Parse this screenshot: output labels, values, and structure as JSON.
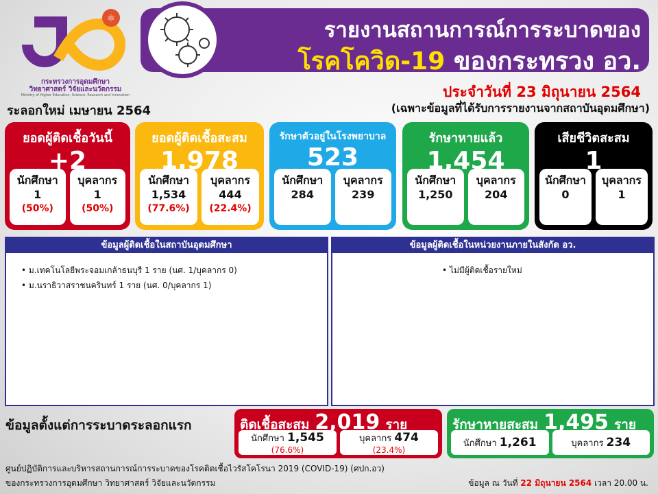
{
  "logo": {
    "org_th_1": "กระทรวงการอุดมศึกษา",
    "org_th_2": "วิทยาศาสตร์ วิจัยและนวัตกรรม",
    "org_en": "Ministry of Higher Education, Science, Research and Innovation",
    "colors": {
      "purple": "#6a2c91",
      "yellow": "#fbb41a",
      "orange": "#e0522a"
    }
  },
  "header": {
    "title_line1": "รายงานสถานการณ์การระบาดของ",
    "title_disease": "โรคโควิด-19",
    "title_rest": "ของกระทรวง อว.",
    "date": "ประจำวันที่ 23 มิถุนายน 2564",
    "note": "(เฉพาะข้อมูลที่ได้รับการรายงานจากสถาบันอุดมศึกษา)",
    "virus_icon": "virus-icon"
  },
  "wave_label": "ระลอกใหม่ เมษายน 2564",
  "cards": [
    {
      "title": "ยอดผู้ติดเชื้อวันนี้",
      "value": "+2",
      "color": "#c8001e",
      "sub": [
        {
          "label": "นักศึกษา",
          "value": "1",
          "pct": "(50%)"
        },
        {
          "label": "บุคลากร",
          "value": "1",
          "pct": "(50%)"
        }
      ]
    },
    {
      "title": "ยอดผู้ติดเชื้อสะสม",
      "value": "1,978",
      "color": "#fbb80f",
      "sub": [
        {
          "label": "นักศึกษา",
          "value": "1,534",
          "pct": "(77.6%)"
        },
        {
          "label": "บุคลากร",
          "value": "444",
          "pct": "(22.4%)"
        }
      ]
    },
    {
      "title": "รักษาตัวอยู่ในโรงพยาบาล",
      "value": "523",
      "color": "#1fa9e6",
      "sub": [
        {
          "label": "นักศึกษา",
          "value": "284"
        },
        {
          "label": "บุคลากร",
          "value": "239"
        }
      ]
    },
    {
      "title": "รักษาหายแล้ว",
      "value": "1,454",
      "color": "#1ea84a",
      "sub": [
        {
          "label": "นักศึกษา",
          "value": "1,250"
        },
        {
          "label": "บุคลากร",
          "value": "204"
        }
      ]
    },
    {
      "title": "เสียชีวิตสะสม",
      "value": "1",
      "color": "#000000",
      "sub": [
        {
          "label": "นักศึกษา",
          "value": "0"
        },
        {
          "label": "บุคลากร",
          "value": "1"
        }
      ]
    }
  ],
  "panels": [
    {
      "title": "ข้อมูลผู้ติดเชื้อในสถาบันอุดมศึกษา",
      "items": [
        "ม.เทคโนโลยีพระจอมเกล้าธนบุรี 1 ราย (นศ. 1/บุคลากร 0)",
        "ม.นราธิวาสราชนครินทร์ 1 ราย (นศ. 0/บุคลากร 1)"
      ]
    },
    {
      "title": "ข้อมูลผู้ติดเชื้อในหน่วยงานภายในสังกัด อว.",
      "items": [
        "ไม่มีผู้ติดเชื้อรายใหม่"
      ]
    }
  ],
  "since_first": {
    "label": "ข้อมูลตั้งแต่การระบาดระลอกแรก",
    "infected": {
      "title": "ติดเชื้อสะสม",
      "value": "2,019",
      "unit": "ราย",
      "students_label": "นักศึกษา",
      "students": "1,545",
      "students_pct": "(76.6%)",
      "staff_label": "บุคลากร",
      "staff": "474",
      "staff_pct": "(23.4%)",
      "color": "#c8001e"
    },
    "recovered": {
      "title": "รักษาหายสะสม",
      "value": "1,495",
      "unit": "ราย",
      "students_label": "นักศึกษา",
      "students": "1,261",
      "staff_label": "บุคลากร",
      "staff": "234",
      "color": "#1ea84a"
    }
  },
  "footer": {
    "line1": "ศูนย์ปฏิบัติการและบริหารสถานการณ์การระบาดของโรคติดเชื้อไวรัสโคโรนา 2019 (COVID-19) (ศปก.อว)",
    "line2": "ของกระทรวงการอุดมศึกษา วิทยาศาสตร์ วิจัยและนวัตกรรม",
    "asof_prefix": "ข้อมูล ณ วันที่",
    "asof_date": "22 มิถุนายน 2564",
    "asof_time": "เวลา 20.00 น."
  }
}
